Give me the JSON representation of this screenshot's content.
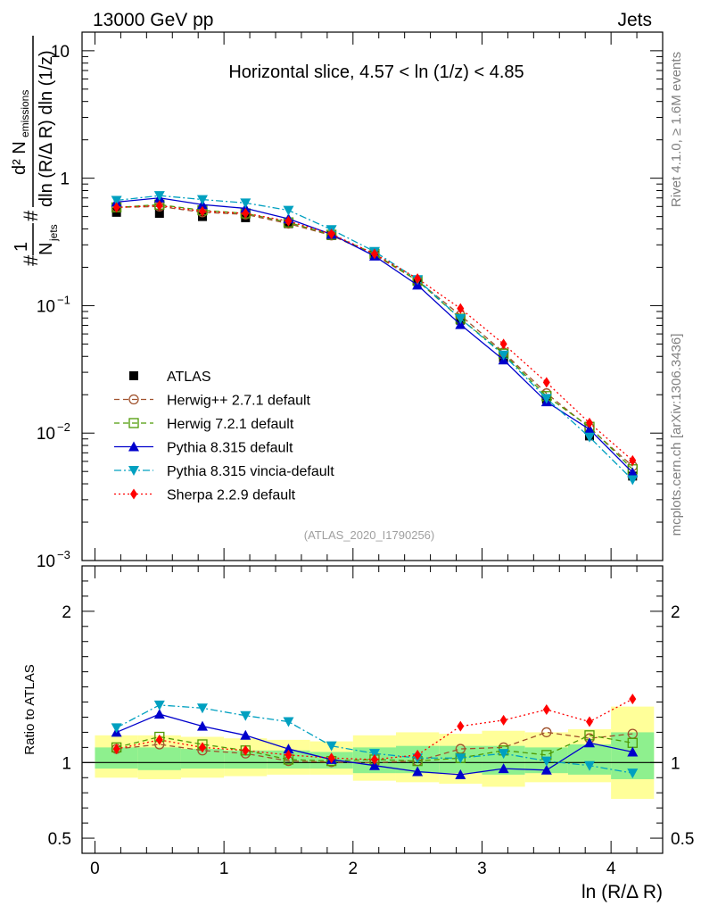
{
  "header": {
    "left": "13000 GeV pp",
    "right": "Jets"
  },
  "side_labels": {
    "rivet": "Rivet 4.1.0, ≥ 1.6M events",
    "mcplots": "mcplots.cern.ch [arXiv:1306.3436]"
  },
  "chart_data": [
    {
      "type": "line",
      "panel": "main",
      "title": "Horizontal slice, 4.57 < ln (1/z) < 4.85",
      "watermark": "(ATLAS_2020_I1790256)",
      "yscale": "log",
      "ylim": [
        0.001,
        14
      ],
      "xlim": [
        -0.1,
        4.4
      ],
      "ylabel_parts": {
        "num1": "#",
        "num1_den": "N",
        "num1_den_sub": "jets",
        "frac2_num": "d² N",
        "frac2_num_sub": "emissions",
        "frac2_den": "dln (R/Δ R) dln (1/z)",
        "hash": "#"
      },
      "yticks": [
        {
          "v": 10,
          "label": "10"
        },
        {
          "v": 1,
          "label": "1"
        },
        {
          "v": 0.1,
          "label": "10",
          "sup": "−1"
        },
        {
          "v": 0.01,
          "label": "10",
          "sup": "−2"
        },
        {
          "v": 0.001,
          "label": "10",
          "sup": "−3"
        }
      ],
      "x": [
        0.167,
        0.5,
        0.833,
        1.167,
        1.5,
        1.833,
        2.167,
        2.5,
        2.833,
        3.167,
        3.5,
        3.833,
        4.167
      ],
      "series": [
        {
          "name": "ATLAS",
          "color": "#000000",
          "marker": "square",
          "line": "none",
          "values": [
            0.54,
            0.53,
            0.5,
            0.49,
            0.44,
            0.355,
            0.25,
            0.155,
            0.077,
            0.039,
            0.0185,
            0.0095,
            0.0046
          ]
        },
        {
          "name": "Herwig++ 2.7.1 default",
          "color": "#a0522d",
          "marker": "circle-open",
          "line": "dashed",
          "values": [
            0.59,
            0.6,
            0.54,
            0.52,
            0.44,
            0.356,
            0.25,
            0.157,
            0.084,
            0.043,
            0.0205,
            0.011,
            0.0055
          ]
        },
        {
          "name": "Herwig 7.2.1 default",
          "color": "#4e9a06",
          "marker": "square-open",
          "line": "dashed",
          "values": [
            0.59,
            0.62,
            0.56,
            0.53,
            0.45,
            0.36,
            0.255,
            0.157,
            0.079,
            0.042,
            0.0195,
            0.0112,
            0.0052
          ]
        },
        {
          "name": "Pythia 8.315 default",
          "color": "#0000cc",
          "marker": "triangle-up",
          "line": "solid",
          "values": [
            0.65,
            0.7,
            0.62,
            0.58,
            0.48,
            0.363,
            0.245,
            0.145,
            0.071,
            0.0375,
            0.0176,
            0.0107,
            0.0049
          ]
        },
        {
          "name": "Pythia 8.315 vincia-default",
          "color": "#00a0c0",
          "marker": "triangle-down",
          "line": "dashdot",
          "values": [
            0.67,
            0.73,
            0.68,
            0.64,
            0.56,
            0.395,
            0.266,
            0.16,
            0.079,
            0.041,
            0.0187,
            0.0093,
            0.0043
          ]
        },
        {
          "name": "Sherpa 2.2.9 default",
          "color": "#ff0000",
          "marker": "diamond",
          "line": "dotted",
          "values": [
            0.59,
            0.61,
            0.55,
            0.53,
            0.46,
            0.365,
            0.255,
            0.163,
            0.095,
            0.05,
            0.025,
            0.012,
            0.0061
          ]
        }
      ]
    },
    {
      "type": "line",
      "panel": "ratio",
      "ylabel": "Ratio to ATLAS",
      "xlabel": "ln (R/Δ R)",
      "ylim": [
        0.4,
        2.3
      ],
      "xlim": [
        -0.1,
        4.4
      ],
      "yticks": [
        {
          "v": 0.5,
          "label": "0.5"
        },
        {
          "v": 1,
          "label": "1"
        },
        {
          "v": 2,
          "label": "2"
        }
      ],
      "xticks": [
        {
          "v": 0,
          "label": "0"
        },
        {
          "v": 1,
          "label": "1"
        },
        {
          "v": 2,
          "label": "2"
        },
        {
          "v": 3,
          "label": "3"
        },
        {
          "v": 4,
          "label": "4"
        }
      ],
      "x": [
        0.167,
        0.5,
        0.833,
        1.167,
        1.5,
        1.833,
        2.167,
        2.5,
        2.833,
        3.167,
        3.5,
        3.833,
        4.167
      ],
      "band_edges": [
        0,
        0.333,
        0.667,
        1.0,
        1.333,
        1.667,
        2.0,
        2.333,
        2.667,
        3.0,
        3.333,
        3.667,
        4.0,
        4.333
      ],
      "band_yellow": [
        [
          0.9,
          1.18
        ],
        [
          0.89,
          1.18
        ],
        [
          0.9,
          1.17
        ],
        [
          0.91,
          1.16
        ],
        [
          0.92,
          1.15
        ],
        [
          0.92,
          1.14
        ],
        [
          0.88,
          1.18
        ],
        [
          0.87,
          1.2
        ],
        [
          0.86,
          1.19
        ],
        [
          0.84,
          1.21
        ],
        [
          0.87,
          1.2
        ],
        [
          0.87,
          1.22
        ],
        [
          0.76,
          1.37
        ]
      ],
      "band_green": [
        [
          0.96,
          1.1
        ],
        [
          0.95,
          1.1
        ],
        [
          0.96,
          1.09
        ],
        [
          0.96,
          1.08
        ],
        [
          0.96,
          1.08
        ],
        [
          0.96,
          1.07
        ],
        [
          0.93,
          1.1
        ],
        [
          0.93,
          1.11
        ],
        [
          0.93,
          1.11
        ],
        [
          0.92,
          1.11
        ],
        [
          0.93,
          1.1
        ],
        [
          0.92,
          1.12
        ],
        [
          0.89,
          1.2
        ]
      ],
      "series": [
        {
          "name": "Herwig++ 2.7.1 default",
          "values": [
            1.09,
            1.12,
            1.08,
            1.06,
            1.01,
            1.003,
            1.0,
            1.01,
            1.09,
            1.1,
            1.2,
            1.16,
            1.19
          ]
        },
        {
          "name": "Herwig 7.2.1 default",
          "values": [
            1.1,
            1.17,
            1.12,
            1.08,
            1.02,
            1.01,
            1.02,
            1.01,
            1.03,
            1.08,
            1.05,
            1.18,
            1.13
          ]
        },
        {
          "name": "Pythia 8.315 default",
          "values": [
            1.2,
            1.32,
            1.24,
            1.18,
            1.09,
            1.02,
            0.98,
            0.94,
            0.92,
            0.96,
            0.95,
            1.13,
            1.07
          ]
        },
        {
          "name": "Pythia 8.315 vincia-default",
          "values": [
            1.23,
            1.38,
            1.36,
            1.31,
            1.27,
            1.11,
            1.06,
            1.03,
            1.03,
            1.06,
            1.01,
            0.98,
            0.93
          ]
        },
        {
          "name": "Sherpa 2.2.9 default",
          "values": [
            1.09,
            1.15,
            1.1,
            1.08,
            1.05,
            1.03,
            1.02,
            1.05,
            1.24,
            1.28,
            1.35,
            1.27,
            1.42
          ]
        }
      ]
    }
  ]
}
